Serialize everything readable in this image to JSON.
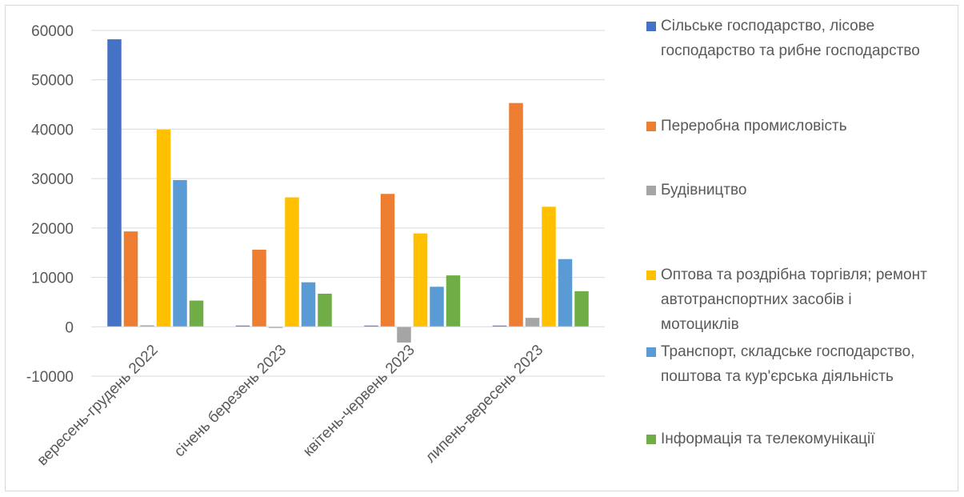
{
  "chart_data": {
    "type": "bar",
    "categories": [
      "вересень-грудень 2022",
      "січень березень 2023",
      "квітень-червень 2023",
      "липень-вересень 2023"
    ],
    "series": [
      {
        "name": "Сільське господарство, лісове господарство та рибне господарство",
        "color": "#4472C4",
        "values": [
          58200,
          0,
          0,
          200
        ]
      },
      {
        "name": "Переробна промисловість",
        "color": "#ED7D31",
        "values": [
          19300,
          15600,
          26900,
          45300
        ]
      },
      {
        "name": "Будівництво",
        "color": "#A5A5A5",
        "values": [
          300,
          -200,
          -3200,
          1800
        ]
      },
      {
        "name": "Оптова та роздрібна торгівля; ремонт автотранспортних засобів і мотоциклів",
        "color": "#FFC000",
        "values": [
          39900,
          26200,
          18900,
          24300
        ]
      },
      {
        "name": "Транспорт, складське господарство, поштова та кур'єрська діяльність",
        "color": "#5B9BD5",
        "values": [
          29700,
          9000,
          8100,
          13700
        ]
      },
      {
        "name": "Інформація та телекомунікації",
        "color": "#70AD47",
        "values": [
          5300,
          6700,
          10400,
          7200
        ]
      }
    ],
    "yticks": [
      60000,
      50000,
      40000,
      30000,
      20000,
      10000,
      0,
      -10000
    ],
    "ylim": [
      -10000,
      60000
    ],
    "grid": true,
    "legend_position": "right"
  }
}
